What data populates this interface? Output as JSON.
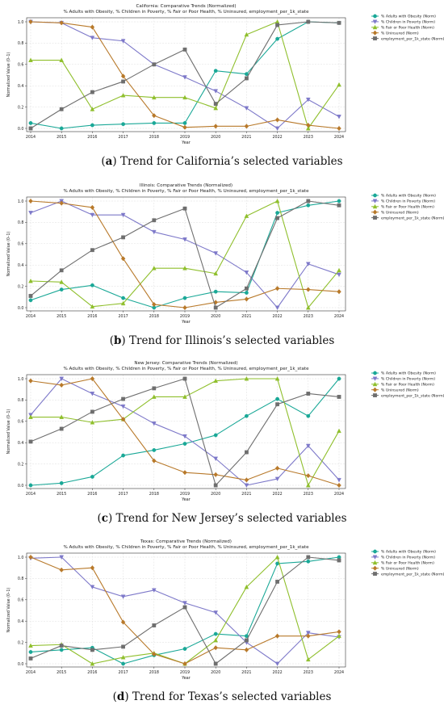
{
  "colors": {
    "obesity": "#1aa897",
    "poverty": "#7d78c9",
    "health": "#8fbf2c",
    "uninsured": "#b8792a",
    "employment": "#6e6e6e"
  },
  "legend_labels": [
    "% Adults with Obesity (Norm)",
    "% Children in Poverty (Norm)",
    "% Fair or Poor Health (Norm)",
    "% Uninsured (Norm)"
  ],
  "panels": [
    {
      "caption_letter": "a",
      "caption_text": "Trend for California’s selected variables",
      "employment_label": "employment_per_1k_state (Norm)"
    },
    {
      "caption_letter": "b",
      "caption_text": "Trend for Illinois’s selected variables",
      "employment_label": "employment_per_1k_state (Norm)"
    },
    {
      "caption_letter": "c",
      "caption_text": "Trend for New Jersey’s selected variables",
      "employment_label": "employment_per_1k_state (Norm)"
    },
    {
      "caption_letter": "d",
      "caption_text": "Trend for Texas’s selected variables",
      "employment_label": "employment_per_1k_state (Norm)"
    }
  ],
  "chart_data": [
    {
      "type": "line",
      "title": "California: Comparative Trends (Normalized)",
      "subtitle": "% Adults with Obesity, % Children in Poverty, % Fair or Poor Health, % Uninsured, employment_per_1k_state",
      "xlabel": "Year",
      "ylabel": "Normalized Value (0–1)",
      "x": [
        2014,
        2015,
        2016,
        2017,
        2018,
        2019,
        2020,
        2021,
        2022,
        2023,
        2024
      ],
      "ylim": [
        0,
        1
      ],
      "yticks": [
        "0.0",
        "0.2",
        "0.4",
        "0.6",
        "0.8",
        "1.0"
      ],
      "grid": true,
      "legend_position": "top-right",
      "series": [
        {
          "name": "% Adults with Obesity (Norm)",
          "values": [
            0.05,
            0.0,
            0.03,
            0.04,
            0.05,
            0.05,
            0.54,
            0.51,
            0.84,
            1.0,
            0.99
          ]
        },
        {
          "name": "% Children in Poverty (Norm)",
          "values": [
            1.0,
            0.99,
            0.85,
            0.82,
            0.6,
            0.48,
            0.35,
            0.19,
            0.0,
            0.27,
            0.11
          ]
        },
        {
          "name": "% Fair or Poor Health (Norm)",
          "values": [
            0.64,
            0.64,
            0.18,
            0.31,
            0.29,
            0.29,
            0.19,
            0.88,
            1.0,
            0.0,
            0.41
          ]
        },
        {
          "name": "% Uninsured (Norm)",
          "values": [
            1.0,
            0.99,
            0.95,
            0.49,
            0.12,
            0.01,
            0.02,
            0.02,
            0.08,
            0.03,
            0.0
          ]
        },
        {
          "name": "employment_per_1k_state (Norm)",
          "values": [
            0.0,
            0.18,
            0.34,
            0.44,
            0.6,
            0.74,
            0.23,
            0.47,
            0.97,
            1.0,
            0.99
          ]
        }
      ]
    },
    {
      "type": "line",
      "title": "Illinois: Comparative Trends (Normalized)",
      "subtitle": "% Adults with Obesity, % Children in Poverty, % Fair or Poor Health, % Uninsured, employment_per_1k_state",
      "xlabel": "Year",
      "ylabel": "Normalized Value (0–1)",
      "x": [
        2014,
        2015,
        2016,
        2017,
        2018,
        2019,
        2020,
        2021,
        2022,
        2023,
        2024
      ],
      "ylim": [
        0,
        1
      ],
      "yticks": [
        "0.0",
        "0.2",
        "0.4",
        "0.6",
        "0.8",
        "1.0"
      ],
      "grid": true,
      "legend_position": "top-right",
      "series": [
        {
          "name": "% Adults with Obesity (Norm)",
          "values": [
            0.07,
            0.17,
            0.21,
            0.09,
            0.0,
            0.09,
            0.15,
            0.14,
            0.89,
            0.96,
            1.0
          ]
        },
        {
          "name": "% Children in Poverty (Norm)",
          "values": [
            0.89,
            1.0,
            0.87,
            0.87,
            0.71,
            0.64,
            0.51,
            0.33,
            0.0,
            0.41,
            0.31
          ]
        },
        {
          "name": "% Fair or Poor Health (Norm)",
          "values": [
            0.25,
            0.24,
            0.01,
            0.04,
            0.37,
            0.37,
            0.32,
            0.86,
            1.0,
            0.0,
            0.35
          ]
        },
        {
          "name": "% Uninsured (Norm)",
          "values": [
            1.0,
            0.98,
            0.94,
            0.46,
            0.03,
            0.0,
            0.05,
            0.08,
            0.18,
            0.17,
            0.15
          ]
        },
        {
          "name": "employment_per_1k_state (Norm)",
          "values": [
            0.11,
            0.35,
            0.54,
            0.66,
            0.82,
            0.93,
            0.0,
            0.18,
            0.84,
            1.0,
            0.96
          ]
        }
      ]
    },
    {
      "type": "line",
      "title": "New Jersey: Comparative Trends (Normalized)",
      "subtitle": "% Adults with Obesity, % Children in Poverty, % Fair or Poor Health, % Uninsured, employment_per_1k_state",
      "xlabel": "Year",
      "ylabel": "Normalized Value (0–1)",
      "x": [
        2014,
        2015,
        2016,
        2017,
        2018,
        2019,
        2020,
        2021,
        2022,
        2023,
        2024
      ],
      "ylim": [
        0,
        1
      ],
      "yticks": [
        "0.0",
        "0.2",
        "0.4",
        "0.6",
        "0.8",
        "1.0"
      ],
      "grid": true,
      "legend_position": "top-right",
      "series": [
        {
          "name": "% Adults with Obesity (Norm)",
          "values": [
            0.0,
            0.02,
            0.08,
            0.28,
            0.33,
            0.39,
            0.47,
            0.65,
            0.81,
            0.65,
            1.0
          ]
        },
        {
          "name": "% Children in Poverty (Norm)",
          "values": [
            0.66,
            1.0,
            0.86,
            0.74,
            0.58,
            0.46,
            0.25,
            0.0,
            0.06,
            0.37,
            0.05
          ]
        },
        {
          "name": "% Fair or Poor Health (Norm)",
          "values": [
            0.64,
            0.64,
            0.59,
            0.62,
            0.83,
            0.83,
            0.98,
            1.0,
            1.0,
            0.0,
            0.51
          ]
        },
        {
          "name": "% Uninsured (Norm)",
          "values": [
            0.98,
            0.94,
            1.0,
            0.62,
            0.23,
            0.12,
            0.1,
            0.05,
            0.16,
            0.09,
            0.0
          ]
        },
        {
          "name": "employment_per_1k_state (Norm)",
          "values": [
            0.41,
            0.53,
            0.69,
            0.81,
            0.91,
            1.0,
            0.0,
            0.31,
            0.76,
            0.86,
            0.83
          ]
        }
      ]
    },
    {
      "type": "line",
      "title": "Texas: Comparative Trends (Normalized)",
      "subtitle": "% Adults with Obesity, % Children in Poverty, % Fair or Poor Health, % Uninsured, employment_per_1k_state",
      "xlabel": "Year",
      "ylabel": "Normalized Value (0–1)",
      "x": [
        2014,
        2015,
        2016,
        2017,
        2018,
        2019,
        2020,
        2021,
        2022,
        2023,
        2024
      ],
      "ylim": [
        0,
        1
      ],
      "yticks": [
        "0.0",
        "0.2",
        "0.4",
        "0.6",
        "0.8",
        "1.0"
      ],
      "grid": true,
      "legend_position": "top-right",
      "series": [
        {
          "name": "% Adults with Obesity (Norm)",
          "values": [
            0.11,
            0.13,
            0.15,
            0.0,
            0.08,
            0.14,
            0.28,
            0.26,
            0.94,
            0.96,
            1.0
          ]
        },
        {
          "name": "% Children in Poverty (Norm)",
          "values": [
            0.99,
            1.0,
            0.72,
            0.63,
            0.69,
            0.57,
            0.48,
            0.2,
            0.0,
            0.29,
            0.25
          ]
        },
        {
          "name": "% Fair or Poor Health (Norm)",
          "values": [
            0.17,
            0.18,
            0.0,
            0.06,
            0.1,
            0.0,
            0.22,
            0.72,
            1.0,
            0.04,
            0.26
          ]
        },
        {
          "name": "% Uninsured (Norm)",
          "values": [
            1.0,
            0.88,
            0.9,
            0.39,
            0.09,
            0.0,
            0.15,
            0.13,
            0.26,
            0.26,
            0.3
          ]
        },
        {
          "name": "employment_per_1k_state (Norm)",
          "values": [
            0.05,
            0.17,
            0.13,
            0.16,
            0.36,
            0.53,
            0.0,
            0.22,
            0.77,
            1.0,
            0.97
          ]
        }
      ]
    }
  ]
}
